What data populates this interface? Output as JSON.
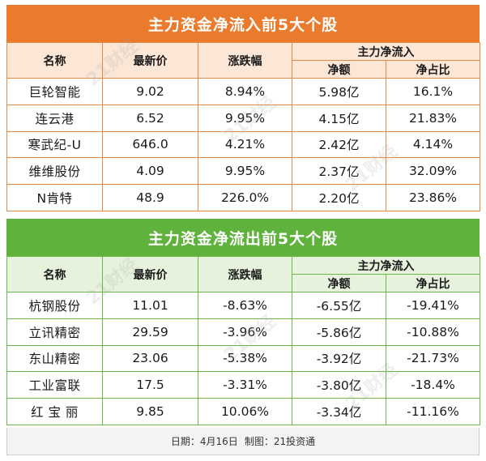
{
  "inflow": {
    "title": "主力资金净流入前5大个股",
    "headers": {
      "name": "名称",
      "price": "最新价",
      "change": "涨跌幅",
      "group": "主力净流入",
      "amount": "净额",
      "ratio": "净占比"
    },
    "rows": [
      {
        "name": "巨轮智能",
        "price": "9.02",
        "change": "8.94%",
        "amount": "5.98亿",
        "ratio": "16.1%"
      },
      {
        "name": "连云港",
        "price": "6.52",
        "change": "9.95%",
        "amount": "4.15亿",
        "ratio": "21.83%"
      },
      {
        "name": "寒武纪-U",
        "price": "646.0",
        "change": "4.21%",
        "amount": "2.42亿",
        "ratio": "4.14%"
      },
      {
        "name": "维维股份",
        "price": "4.09",
        "change": "9.95%",
        "amount": "2.37亿",
        "ratio": "32.09%"
      },
      {
        "name": "N肯特",
        "price": "48.9",
        "change": "226.0%",
        "amount": "2.20亿",
        "ratio": "23.86%"
      }
    ]
  },
  "outflow": {
    "title": "主力资金净流出前5大个股",
    "headers": {
      "name": "名称",
      "price": "最新价",
      "change": "涨跌幅",
      "group": "主力净流入",
      "amount": "净额",
      "ratio": "净占比"
    },
    "rows": [
      {
        "name": "杭钢股份",
        "price": "11.01",
        "change": "-8.63%",
        "amount": "-6.55亿",
        "ratio": "-19.41%"
      },
      {
        "name": "立讯精密",
        "price": "29.59",
        "change": "-3.96%",
        "amount": "-5.86亿",
        "ratio": "-10.88%"
      },
      {
        "name": "东山精密",
        "price": "23.06",
        "change": "-5.38%",
        "amount": "-3.92亿",
        "ratio": "-21.73%"
      },
      {
        "name": "工业富联",
        "price": "17.5",
        "change": "-3.31%",
        "amount": "-3.80亿",
        "ratio": "-18.4%"
      },
      {
        "name": "红 宝 丽",
        "price": "9.85",
        "change": "10.06%",
        "amount": "-3.34亿",
        "ratio": "-11.16%"
      }
    ]
  },
  "footer": {
    "date": "日期：4月16日",
    "maker": "制图：21投资通"
  },
  "watermark": "21财经",
  "colors": {
    "inflow_banner": "#ea7b2c",
    "outflow_banner": "#5fb23c"
  }
}
